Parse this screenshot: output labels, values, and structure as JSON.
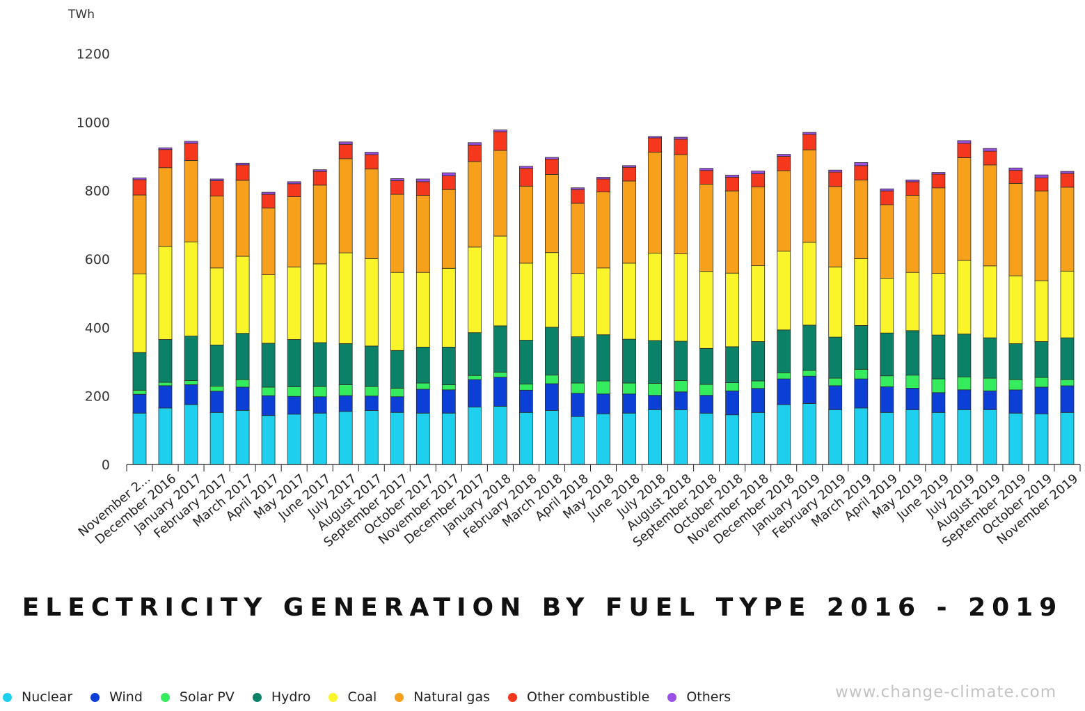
{
  "chart_data": {
    "type": "bar",
    "stacked": true,
    "title": "ELECTRICITY GENERATION BY FUEL TYPE 2016 - 2019",
    "ylabel": "TWh",
    "ylim": [
      0,
      1200
    ],
    "yticks": [
      0,
      200,
      400,
      600,
      800,
      1000,
      1200
    ],
    "grid": false,
    "legend_position": "bottom",
    "categories": [
      "November 2...",
      "December 2016",
      "January 2017",
      "February 2017",
      "March 2017",
      "April 2017",
      "May 2017",
      "June 2017",
      "July 2017",
      "August 2017",
      "September 2017",
      "October 2017",
      "November 2017",
      "December 2017",
      "January 2018",
      "February 2018",
      "March 2018",
      "April 2018",
      "May 2018",
      "June 2018",
      "July 2018",
      "August 2018",
      "September 2018",
      "October 2018",
      "November 2018",
      "December 2018",
      "January 2019",
      "February 2019",
      "March 2019",
      "April 2019",
      "May 2019",
      "June 2019",
      "July 2019",
      "August 2019",
      "September 2019",
      "October 2019",
      "November 2019"
    ],
    "series": [
      {
        "name": "Nuclear",
        "color": "#1fd0ee",
        "values": [
          150,
          165,
          175,
          152,
          158,
          143,
          147,
          150,
          155,
          158,
          152,
          150,
          150,
          168,
          170,
          152,
          158,
          140,
          148,
          150,
          160,
          160,
          150,
          145,
          152,
          175,
          178,
          160,
          165,
          152,
          160,
          152,
          160,
          160,
          150,
          148,
          152
        ]
      },
      {
        "name": "Wind",
        "color": "#0c3fd6",
        "values": [
          55,
          65,
          58,
          62,
          68,
          58,
          52,
          48,
          46,
          42,
          46,
          70,
          68,
          80,
          85,
          65,
          78,
          68,
          58,
          56,
          42,
          52,
          52,
          70,
          70,
          75,
          80,
          70,
          85,
          75,
          63,
          58,
          58,
          55,
          68,
          78,
          78
        ]
      },
      {
        "name": "Solar PV",
        "color": "#34ec5e",
        "values": [
          12,
          10,
          12,
          15,
          22,
          25,
          28,
          30,
          32,
          28,
          25,
          18,
          15,
          12,
          15,
          18,
          25,
          30,
          38,
          32,
          35,
          33,
          32,
          24,
          22,
          18,
          17,
          22,
          28,
          32,
          38,
          40,
          38,
          37,
          30,
          28,
          18
        ]
      },
      {
        "name": "Hydro",
        "color": "#0b8168",
        "values": [
          110,
          125,
          130,
          120,
          135,
          128,
          138,
          128,
          120,
          118,
          110,
          105,
          110,
          125,
          135,
          128,
          140,
          135,
          135,
          128,
          125,
          115,
          105,
          105,
          115,
          125,
          132,
          120,
          128,
          125,
          130,
          128,
          125,
          118,
          105,
          105,
          122
        ]
      },
      {
        "name": "Coal",
        "color": "#faf42b",
        "values": [
          230,
          272,
          275,
          225,
          225,
          200,
          212,
          230,
          265,
          255,
          228,
          218,
          230,
          250,
          262,
          225,
          218,
          185,
          195,
          222,
          255,
          255,
          225,
          215,
          222,
          230,
          242,
          205,
          195,
          160,
          170,
          180,
          215,
          210,
          198,
          178,
          195
        ]
      },
      {
        "name": "Natural gas",
        "color": "#f7a01c",
        "values": [
          230,
          230,
          238,
          210,
          222,
          195,
          205,
          230,
          275,
          262,
          228,
          225,
          230,
          250,
          250,
          225,
          228,
          205,
          222,
          240,
          295,
          290,
          255,
          240,
          230,
          235,
          270,
          235,
          230,
          215,
          225,
          250,
          300,
          295,
          270,
          262,
          245
        ]
      },
      {
        "name": "Other combustible",
        "color": "#f4371d",
        "values": [
          45,
          53,
          50,
          45,
          45,
          40,
          38,
          40,
          42,
          42,
          40,
          40,
          40,
          48,
          55,
          52,
          45,
          40,
          38,
          40,
          42,
          45,
          40,
          40,
          38,
          42,
          45,
          42,
          42,
          40,
          40,
          40,
          42,
          40,
          38,
          38,
          40
        ]
      },
      {
        "name": "Others",
        "color": "#9a52e6",
        "values": [
          5,
          5,
          6,
          5,
          5,
          6,
          6,
          5,
          7,
          7,
          6,
          8,
          9,
          7,
          5,
          6,
          5,
          5,
          5,
          5,
          4,
          6,
          6,
          6,
          8,
          6,
          6,
          6,
          9,
          6,
          5,
          5,
          8,
          8,
          7,
          9,
          6
        ]
      }
    ]
  },
  "legend_items": [
    {
      "label": "Nuclear",
      "color": "#1fd0ee"
    },
    {
      "label": "Wind",
      "color": "#0c3fd6"
    },
    {
      "label": "Solar PV",
      "color": "#34ec5e"
    },
    {
      "label": "Hydro",
      "color": "#0b8168"
    },
    {
      "label": "Coal",
      "color": "#faf42b"
    },
    {
      "label": "Natural gas",
      "color": "#f7a01c"
    },
    {
      "label": "Other combustible",
      "color": "#f4371d"
    },
    {
      "label": "Others",
      "color": "#9a52e6"
    }
  ],
  "watermark": "www.change-climate.com"
}
